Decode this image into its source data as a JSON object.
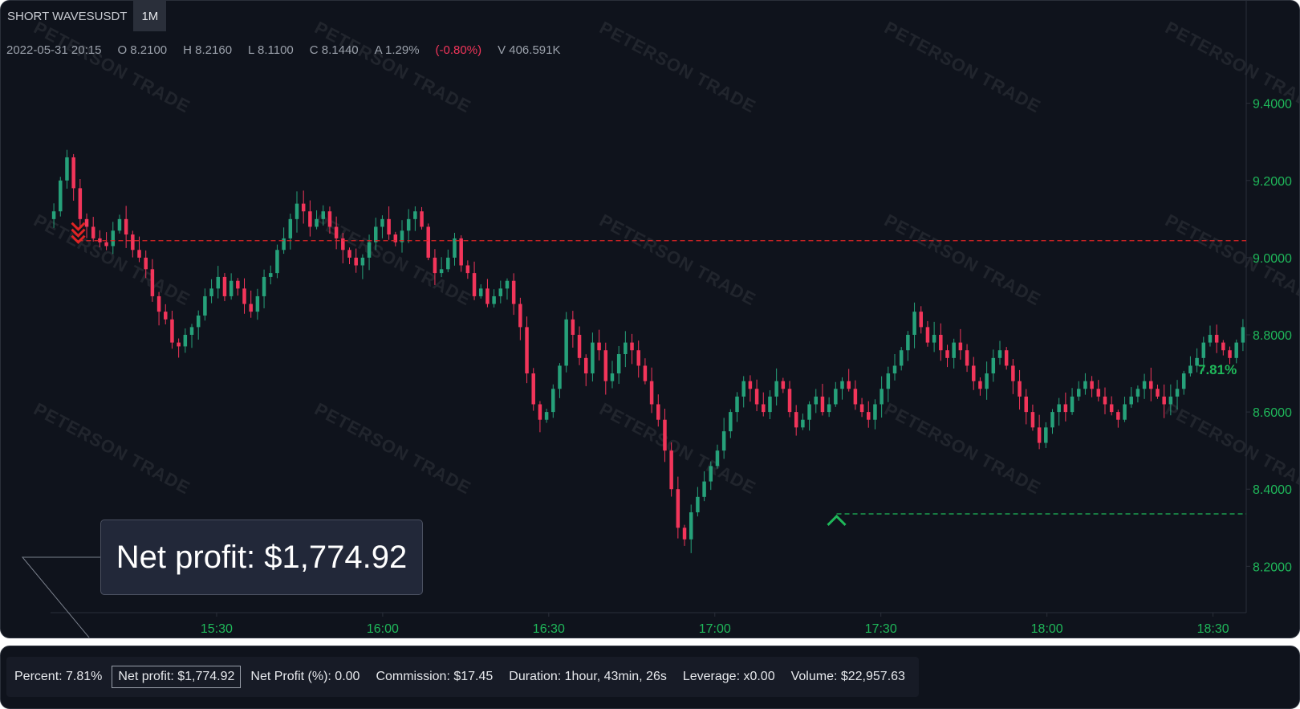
{
  "header": {
    "symbol": "SHORT WAVESUSDT",
    "timeframe": "1M"
  },
  "ohlc": {
    "datetime": "2022-05-31 20:15",
    "open": "O 8.2100",
    "high": "H 8.2160",
    "low": "L 8.1100",
    "close": "C 8.1440",
    "amplitude": "A 1.29%",
    "change": "(-0.80%)",
    "volume": "V 406.591K"
  },
  "watermark": "PETERSON TRADE",
  "profit_box": "Net profit: $1,774.92",
  "percent_label": "7.81%",
  "colors": {
    "up": "#26a17a",
    "down": "#f2355a",
    "entry_line": "#e02424",
    "exit_line": "#1fb85a",
    "axis_text": "#1fb85a",
    "background": "#0f131c"
  },
  "stats": {
    "percent": "Percent: 7.81%",
    "net_profit": "Net profit: $1,774.92",
    "net_profit_pct": "Net Profit (%): 0.00",
    "commission": "Commission: $17.45",
    "duration": "Duration: 1hour, 43min, 26s",
    "leverage": "Leverage: x0.00",
    "volume": "Volume: $22,957.63"
  },
  "chart_data": {
    "type": "candlestick",
    "y_ticks": [
      "9.4000",
      "9.2000",
      "9.0000",
      "8.8000",
      "8.6000",
      "8.4000",
      "8.2000"
    ],
    "x_ticks": [
      "15:30",
      "16:00",
      "16:30",
      "17:00",
      "17:30",
      "18:00",
      "18:30"
    ],
    "ylim": [
      8.08,
      9.52
    ],
    "x_start_minutes": 900,
    "x_end_minutes": 1116,
    "entry_price": 9.044,
    "exit_price": 8.336,
    "entry_time_minutes": 905,
    "exit_time_minutes": 1042,
    "closes": [
      9.12,
      9.2,
      9.26,
      9.18,
      9.1,
      9.08,
      9.05,
      9.04,
      9.03,
      9.07,
      9.1,
      9.06,
      9.02,
      9.0,
      8.97,
      8.9,
      8.86,
      8.84,
      8.78,
      8.77,
      8.8,
      8.82,
      8.85,
      8.9,
      8.92,
      8.95,
      8.9,
      8.94,
      8.92,
      8.88,
      8.86,
      8.9,
      8.95,
      8.96,
      9.02,
      9.05,
      9.1,
      9.14,
      9.12,
      9.08,
      9.1,
      9.12,
      9.08,
      9.05,
      9.02,
      9.0,
      8.98,
      9.0,
      9.04,
      9.08,
      9.1,
      9.06,
      9.04,
      9.07,
      9.1,
      9.12,
      9.08,
      9.0,
      8.96,
      8.97,
      9.0,
      9.05,
      8.98,
      8.96,
      8.9,
      8.92,
      8.88,
      8.9,
      8.92,
      8.94,
      8.88,
      8.82,
      8.7,
      8.62,
      8.58,
      8.6,
      8.66,
      8.72,
      8.84,
      8.8,
      8.74,
      8.7,
      8.78,
      8.76,
      8.68,
      8.7,
      8.75,
      8.78,
      8.76,
      8.72,
      8.68,
      8.62,
      8.58,
      8.5,
      8.4,
      8.3,
      8.27,
      8.34,
      8.38,
      8.42,
      8.46,
      8.5,
      8.55,
      8.6,
      8.64,
      8.68,
      8.66,
      8.62,
      8.6,
      8.64,
      8.68,
      8.66,
      8.6,
      8.56,
      8.58,
      8.62,
      8.64,
      8.6,
      8.62,
      8.66,
      8.68,
      8.66,
      8.62,
      8.6,
      8.58,
      8.62,
      8.66,
      8.7,
      8.72,
      8.76,
      8.8,
      8.86,
      8.82,
      8.78,
      8.8,
      8.76,
      8.74,
      8.78,
      8.76,
      8.72,
      8.68,
      8.66,
      8.7,
      8.74,
      8.76,
      8.72,
      8.68,
      8.64,
      8.6,
      8.56,
      8.52,
      8.56,
      8.6,
      8.62,
      8.6,
      8.64,
      8.66,
      8.68,
      8.66,
      8.64,
      8.62,
      8.6,
      8.58,
      8.62,
      8.64,
      8.66,
      8.68,
      8.66,
      8.64,
      8.62,
      8.64,
      8.66,
      8.7,
      8.72,
      8.74,
      8.78,
      8.8,
      8.78,
      8.76,
      8.74,
      8.78,
      8.82
    ]
  }
}
